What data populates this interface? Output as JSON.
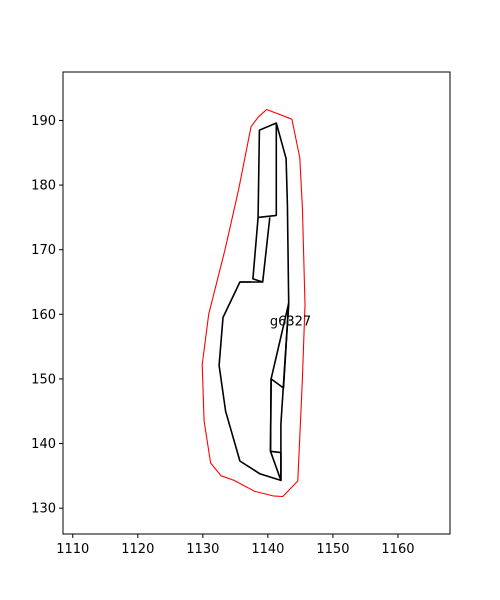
{
  "chart_data": {
    "type": "line",
    "title": "",
    "xlabel": "",
    "ylabel": "",
    "xlim": [
      1108.5,
      1168
    ],
    "ylim": [
      126,
      197.5
    ],
    "x_ticks": [
      1110,
      1120,
      1130,
      1140,
      1150,
      1160
    ],
    "y_ticks": [
      130,
      140,
      150,
      160,
      170,
      180,
      190
    ],
    "grid": false,
    "legend": "none",
    "annotation": {
      "text": "g6327",
      "x": 1140.3,
      "y": 158.3
    },
    "series": [
      {
        "role": "outline",
        "color": "#ff0000",
        "closed": true,
        "points": [
          [
            1139.8,
            191.7
          ],
          [
            1143.7,
            190.2
          ],
          [
            1144.9,
            184.2
          ],
          [
            1145.3,
            176.5
          ],
          [
            1145.7,
            161.5
          ],
          [
            1145.3,
            150.0
          ],
          [
            1144.6,
            134.2
          ],
          [
            1142.3,
            131.8
          ],
          [
            1140.8,
            131.9
          ],
          [
            1138.0,
            132.6
          ],
          [
            1134.8,
            134.3
          ],
          [
            1132.8,
            135.0
          ],
          [
            1131.2,
            137.0
          ],
          [
            1130.2,
            143.5
          ],
          [
            1129.9,
            152.2
          ],
          [
            1130.9,
            160.0
          ],
          [
            1133.4,
            170.0
          ],
          [
            1135.5,
            179.3
          ],
          [
            1137.4,
            189.0
          ],
          [
            1138.5,
            190.5
          ]
        ]
      },
      {
        "role": "skeleton",
        "color": "#000000",
        "closed": false,
        "points": [
          [
            1141.3,
            189.6
          ],
          [
            1138.7,
            188.5
          ],
          [
            1138.5,
            175.0
          ],
          [
            1141.3,
            175.3
          ],
          [
            1141.3,
            189.6
          ],
          [
            1142.8,
            184.1
          ],
          [
            1143.0,
            177.0
          ],
          [
            1143.2,
            161.7
          ],
          [
            1142.4,
            148.6
          ],
          [
            1140.5,
            150.0
          ],
          [
            1140.4,
            138.8
          ],
          [
            1142.0,
            138.6
          ],
          [
            1142.0,
            134.3
          ],
          [
            1138.8,
            135.3
          ],
          [
            1135.7,
            137.3
          ],
          [
            1133.5,
            145.0
          ],
          [
            1132.5,
            152.1
          ],
          [
            1133.1,
            159.5
          ],
          [
            1135.7,
            165.0
          ],
          [
            1137.4,
            165.0
          ]
        ]
      },
      {
        "role": "skeleton",
        "color": "#000000",
        "closed": false,
        "points": [
          [
            1138.5,
            175.0
          ],
          [
            1137.7,
            165.5
          ],
          [
            1139.2,
            165.0
          ],
          [
            1140.3,
            175.0
          ]
        ]
      },
      {
        "role": "skeleton",
        "color": "#000000",
        "closed": false,
        "points": [
          [
            1135.7,
            165.0
          ],
          [
            1139.2,
            165.0
          ]
        ]
      },
      {
        "role": "skeleton",
        "color": "#000000",
        "closed": false,
        "points": [
          [
            1143.2,
            161.7
          ],
          [
            1140.5,
            150.0
          ],
          [
            1140.4,
            138.8
          ],
          [
            1142.0,
            134.3
          ],
          [
            1142.0,
            143.0
          ],
          [
            1143.2,
            161.7
          ]
        ]
      }
    ]
  }
}
